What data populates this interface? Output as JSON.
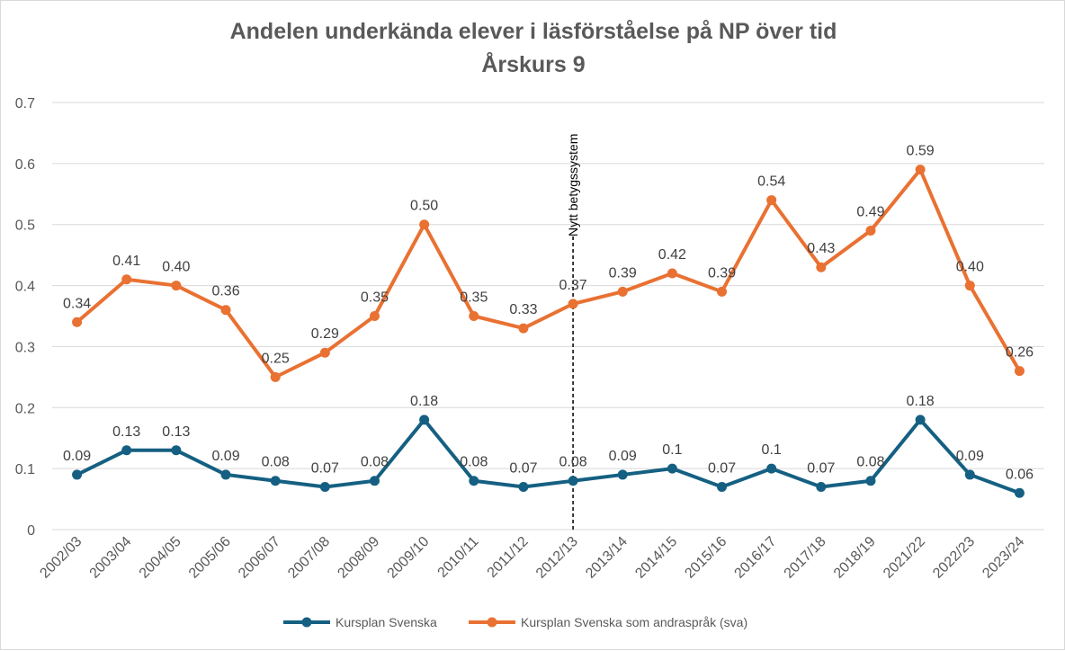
{
  "chart_data": {
    "type": "line",
    "title": "Andelen underkända elever i läsförståelse på NP över tid",
    "subtitle": "Årskurs 9",
    "xlabel": "",
    "ylabel": "",
    "ylim": [
      0,
      0.7
    ],
    "yticks": [
      "0",
      "0.1",
      "0.2",
      "0.3",
      "0.4",
      "0.5",
      "0.6",
      "0.7"
    ],
    "grid": true,
    "legend_position": "bottom",
    "categories": [
      "2002/03",
      "2003/04",
      "2004/05",
      "2005/06",
      "2006/07",
      "2007/08",
      "2008/09",
      "2009/10",
      "2010/11",
      "2011/12",
      "2012/13",
      "2013/14",
      "2014/15",
      "2015/16",
      "2016/17",
      "2017/18",
      "2018/19",
      "2021/22",
      "2022/23",
      "2023/24"
    ],
    "series": [
      {
        "name": "Kursplan Svenska",
        "color": "#156082",
        "values": [
          0.09,
          0.13,
          0.13,
          0.09,
          0.08,
          0.07,
          0.08,
          0.18,
          0.08,
          0.07,
          0.08,
          0.09,
          0.1,
          0.07,
          0.1,
          0.07,
          0.08,
          0.18,
          0.09,
          0.06
        ],
        "labels": [
          "0.09",
          "0.13",
          "0.13",
          "0.09",
          "0.08",
          "0.07",
          "0.08",
          "0.18",
          "0.08",
          "0.07",
          "0.08",
          "0.09",
          "0.1",
          "0.07",
          "0.1",
          "0.07",
          "0.08",
          "0.18",
          "0.09",
          "0.06"
        ]
      },
      {
        "name": "Kursplan Svenska som andraspråk (sva)",
        "color": "#E97132",
        "values": [
          0.34,
          0.41,
          0.4,
          0.36,
          0.25,
          0.29,
          0.35,
          0.5,
          0.35,
          0.33,
          0.37,
          0.39,
          0.42,
          0.39,
          0.54,
          0.43,
          0.49,
          0.59,
          0.4,
          0.26
        ],
        "labels": [
          "0.34",
          "0.41",
          "0.40",
          "0.36",
          "0.25",
          "0.29",
          "0.35",
          "0.50",
          "0.35",
          "0.33",
          "0.37",
          "0.39",
          "0.42",
          "0.39",
          "0.54",
          "0.43",
          "0.49",
          "0.59",
          "0.40",
          "0.26"
        ]
      }
    ],
    "annotation": {
      "text": "Nytt betygssystem",
      "at_category": "2012/13",
      "style": "dashed-vertical-line"
    }
  }
}
